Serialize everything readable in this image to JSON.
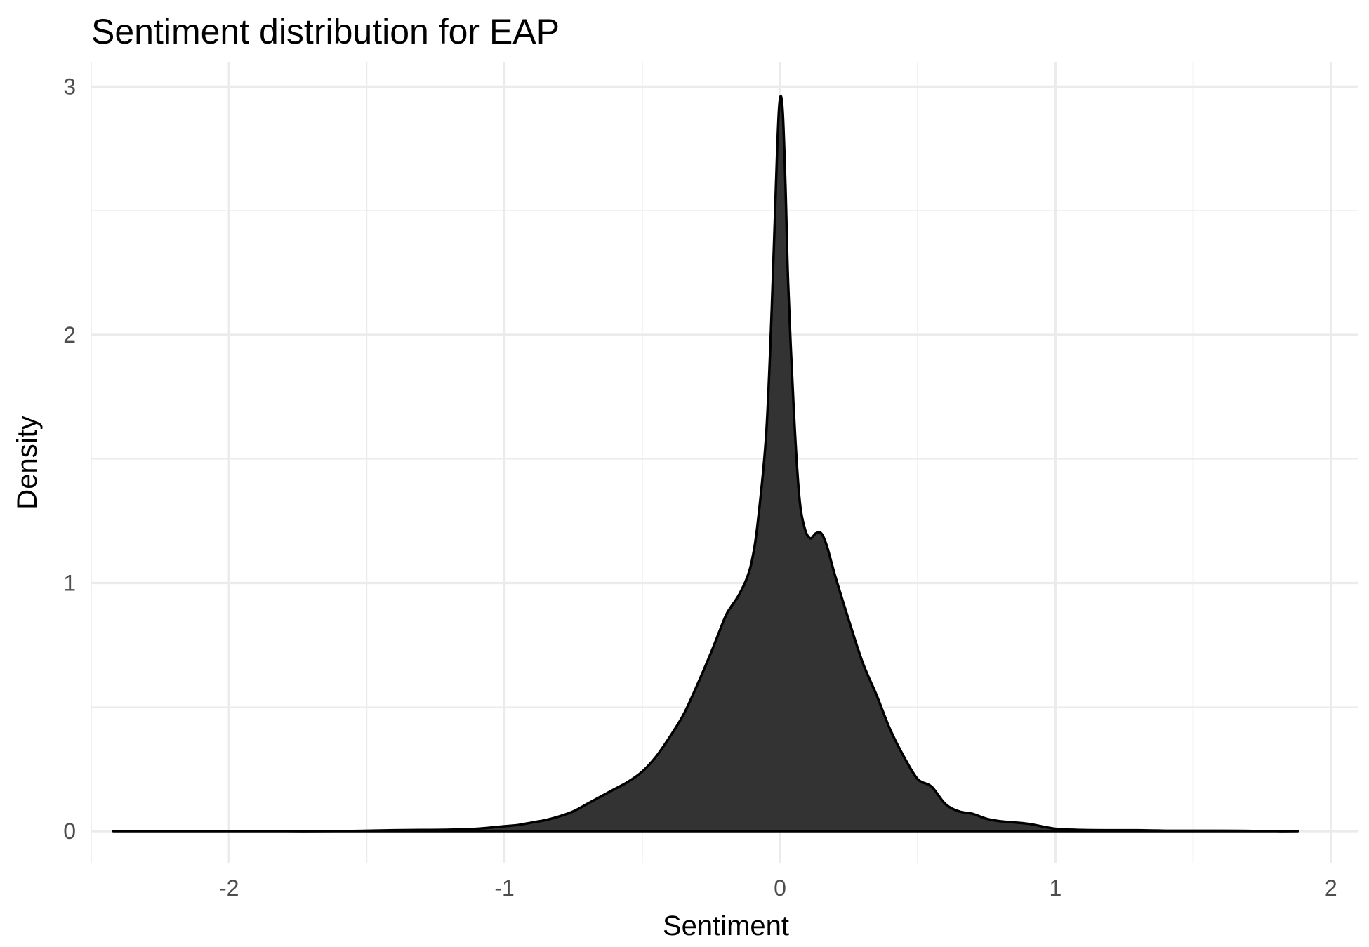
{
  "chart_data": {
    "type": "area",
    "title": "Sentiment distribution for EAP",
    "xlabel": "Sentiment",
    "ylabel": "Density",
    "xlim": [
      -2.5,
      2.1
    ],
    "ylim": [
      -0.13,
      3.1
    ],
    "x_ticks": [
      -2,
      -1,
      0,
      1,
      2
    ],
    "x_tick_labels": [
      "-2",
      "-1",
      "0",
      "1",
      "2"
    ],
    "y_ticks": [
      0,
      1,
      2,
      3
    ],
    "y_tick_labels": [
      "0",
      "1",
      "2",
      "3"
    ],
    "grid": true,
    "legend": "none",
    "colors": {
      "fill": "#333333",
      "outline": "#000000",
      "grid": "#ebebeb",
      "background": "#ffffff"
    },
    "series": [
      {
        "x": [
          -2.42,
          -2.2,
          -2.0,
          -1.8,
          -1.6,
          -1.5,
          -1.4,
          -1.3,
          -1.2,
          -1.1,
          -1.0,
          -0.95,
          -0.9,
          -0.85,
          -0.8,
          -0.75,
          -0.7,
          -0.65,
          -0.6,
          -0.55,
          -0.5,
          -0.45,
          -0.4,
          -0.35,
          -0.3,
          -0.25,
          -0.2,
          -0.18,
          -0.15,
          -0.12,
          -0.1,
          -0.08,
          -0.05,
          -0.03,
          -0.01,
          0.0,
          0.01,
          0.02,
          0.03,
          0.05,
          0.07,
          0.09,
          0.11,
          0.13,
          0.15,
          0.17,
          0.2,
          0.25,
          0.3,
          0.35,
          0.4,
          0.45,
          0.5,
          0.55,
          0.6,
          0.65,
          0.7,
          0.75,
          0.8,
          0.9,
          1.0,
          1.1,
          1.2,
          1.3,
          1.4,
          1.5,
          1.6,
          1.7,
          1.8,
          1.88
        ],
        "y": [
          0.0,
          0.0,
          0.0,
          0.0,
          0.0,
          0.002,
          0.004,
          0.005,
          0.006,
          0.01,
          0.02,
          0.025,
          0.035,
          0.045,
          0.06,
          0.08,
          0.11,
          0.14,
          0.17,
          0.2,
          0.24,
          0.3,
          0.38,
          0.47,
          0.59,
          0.72,
          0.86,
          0.9,
          0.95,
          1.02,
          1.1,
          1.25,
          1.6,
          2.1,
          2.75,
          2.95,
          2.9,
          2.6,
          2.2,
          1.7,
          1.35,
          1.22,
          1.18,
          1.2,
          1.2,
          1.15,
          1.03,
          0.85,
          0.68,
          0.55,
          0.41,
          0.3,
          0.21,
          0.18,
          0.11,
          0.08,
          0.07,
          0.05,
          0.04,
          0.03,
          0.01,
          0.005,
          0.004,
          0.004,
          0.002,
          0.002,
          0.002,
          0.001,
          0.0,
          0.0
        ]
      }
    ]
  }
}
